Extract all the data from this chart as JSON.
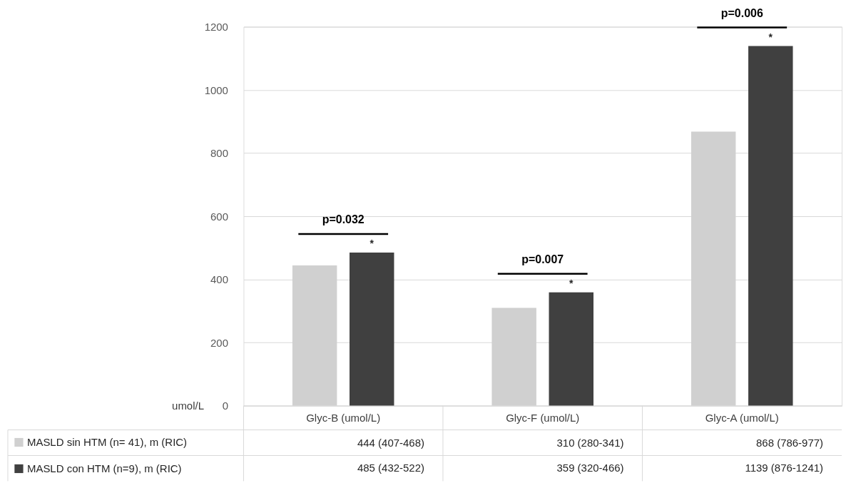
{
  "chart_data": {
    "type": "bar",
    "ylabel": "umol/L",
    "categories": [
      "Glyc-B (umol/L)",
      "Glyc-F (umol/L)",
      "Glyc-A (umol/L)"
    ],
    "series": [
      {
        "name": "MASLD sin HTM (n= 41), m (RIC)",
        "color": "#d0d0d0",
        "values": [
          444,
          310,
          868
        ],
        "value_labels": [
          "444 (407-468)",
          "310 (280-341)",
          "868 (786-977)"
        ]
      },
      {
        "name": "MASLD con HTM (n=9), m (RIC)",
        "color": "#404040",
        "values": [
          485,
          359,
          1139
        ],
        "value_labels": [
          "485 (432-522)",
          "359 (320-466)",
          "1139 (876-1241)"
        ]
      }
    ],
    "ylim": [
      0,
      1200
    ],
    "yticks": [
      0,
      200,
      400,
      600,
      800,
      1000,
      1200
    ],
    "grid": "y",
    "legend": "bottom left",
    "annotations": [
      "p=0.032",
      "*",
      "p=0.007",
      "*",
      "p=0.006",
      "*"
    ]
  }
}
